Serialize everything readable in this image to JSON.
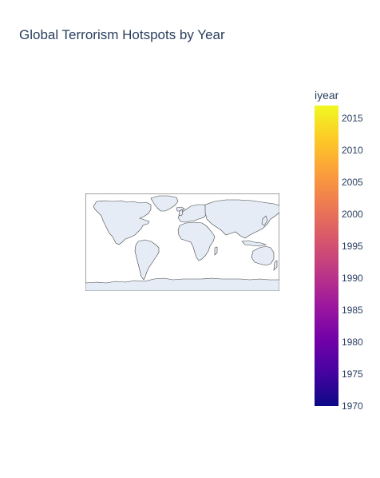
{
  "chart": {
    "title": "Global Terrorism Hotspots by Year"
  },
  "colorbar": {
    "title": "iyear",
    "ticks": [
      "2015",
      "2010",
      "2005",
      "2000",
      "1995",
      "1990",
      "1985",
      "1980",
      "1975",
      "1970"
    ],
    "range": [
      1970,
      2017
    ],
    "colorscale": [
      "#0d0887",
      "#46039f",
      "#7201a8",
      "#9c179e",
      "#bd3786",
      "#d8576b",
      "#ed7953",
      "#fb9f3a",
      "#fdca26",
      "#f0f921"
    ]
  },
  "map": {
    "projection": "equirectangular",
    "land_color": "#e5ecf6",
    "coastline_color": "#444444"
  }
}
